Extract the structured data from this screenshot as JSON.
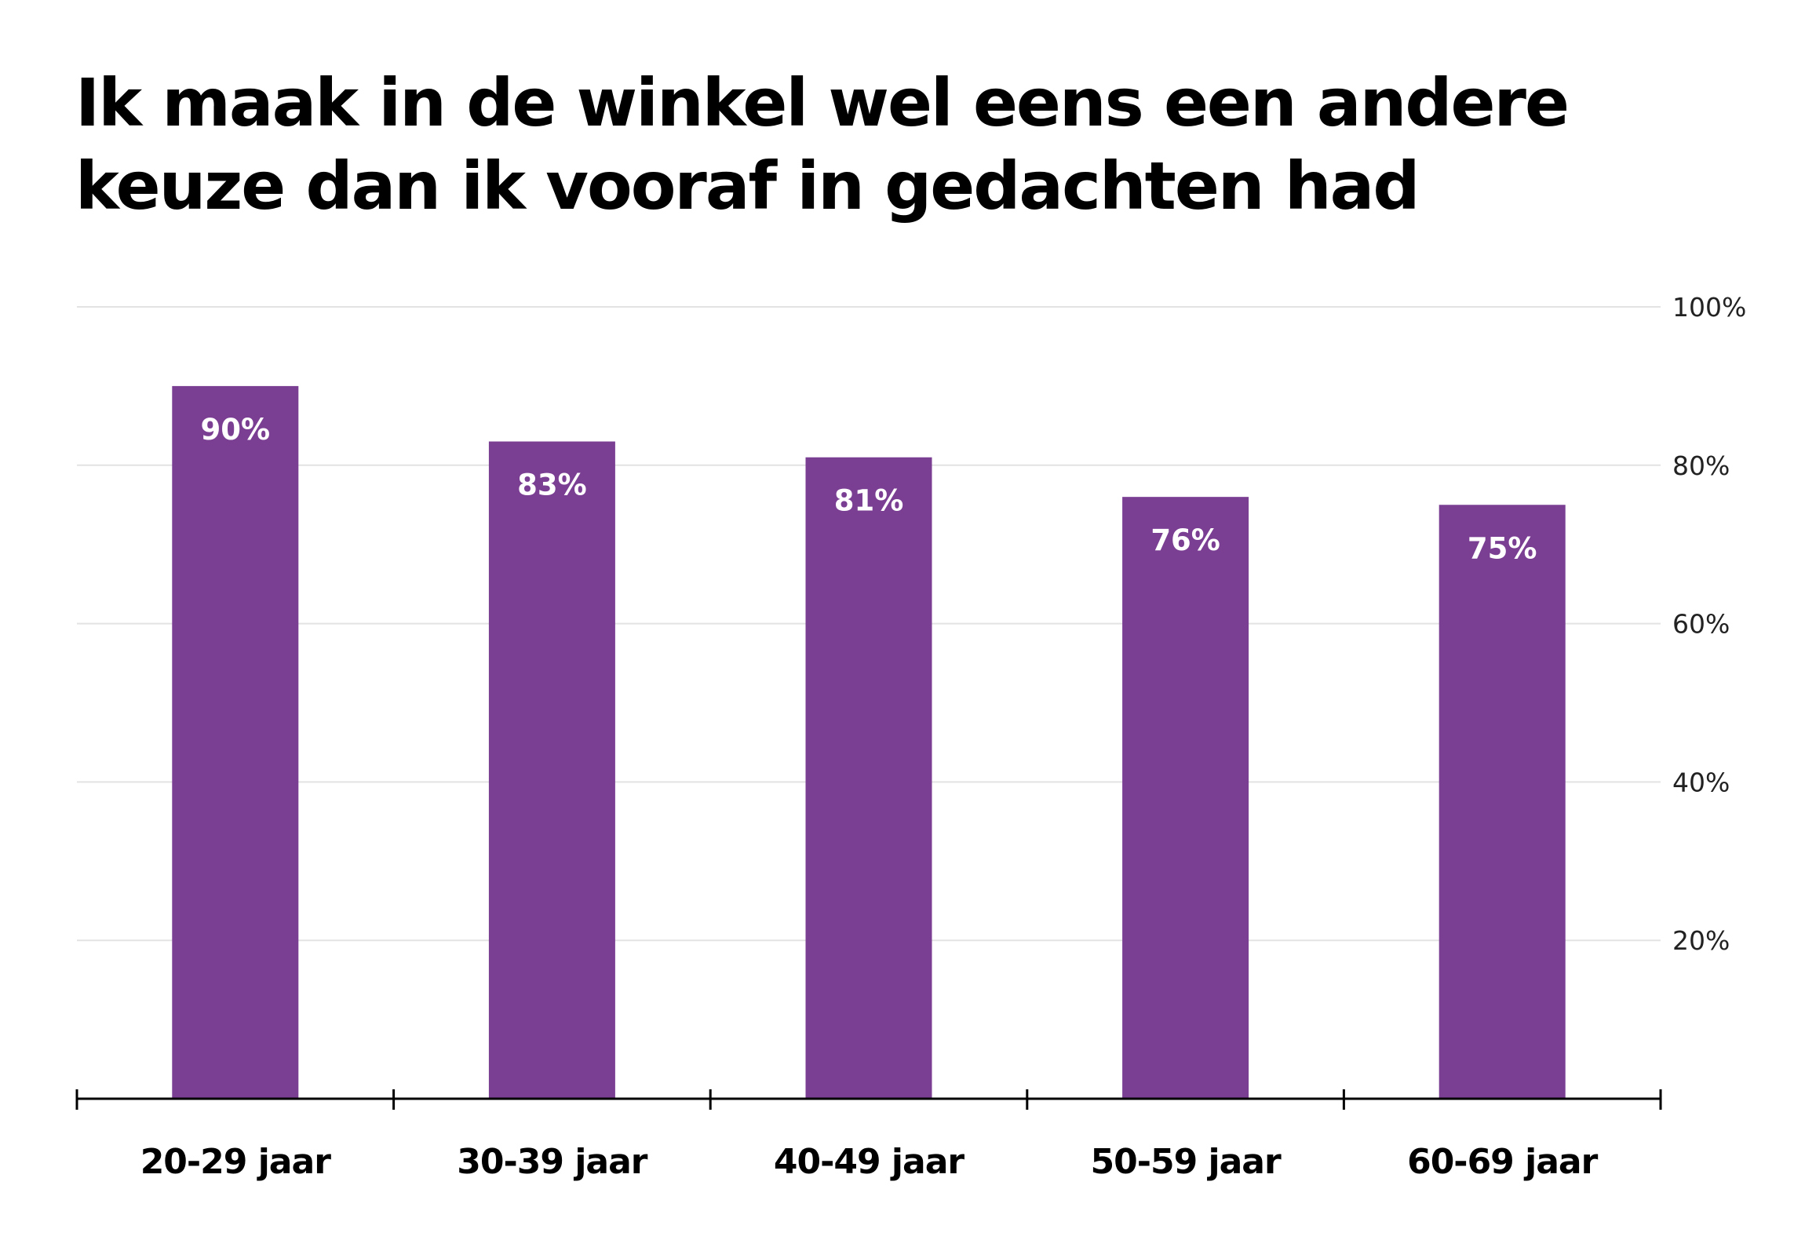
{
  "chart_data": {
    "type": "bar",
    "title": "Ik maak in de winkel wel eens een andere keuze dan ik vooraf in gedachten had",
    "categories": [
      "20-29 jaar",
      "30-39 jaar",
      "40-49 jaar",
      "50-59 jaar",
      "60-69 jaar"
    ],
    "values": [
      90,
      83,
      81,
      76,
      75
    ],
    "data_labels": [
      "90%",
      "83%",
      "81%",
      "76%",
      "75%"
    ],
    "xlabel": "",
    "ylabel": "",
    "ylim": [
      0,
      100
    ],
    "yticks": [
      20,
      40,
      60,
      80,
      100
    ],
    "ytick_labels": [
      "20%",
      "40%",
      "60%",
      "80%",
      "100%"
    ],
    "y_axis_position": "right",
    "grid": true,
    "bar_color": "#7a3e93"
  }
}
